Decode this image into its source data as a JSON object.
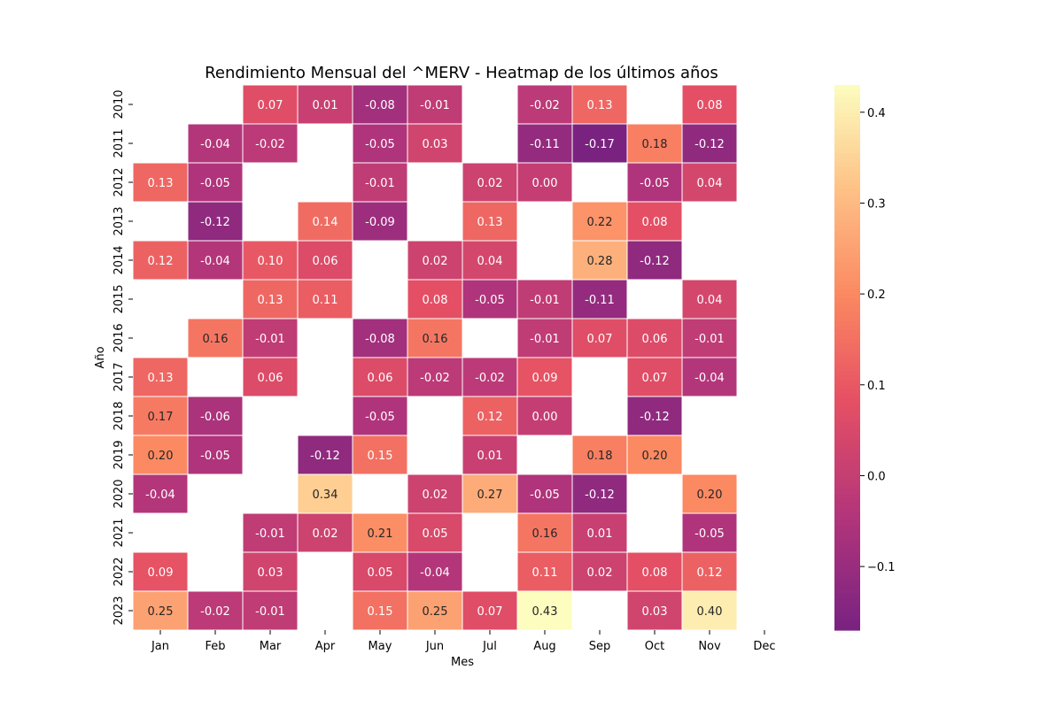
{
  "chart_data": {
    "type": "heatmap",
    "title": "Rendimiento Mensual del ^MERV - Heatmap de los últimos años",
    "xlabel": "Mes",
    "ylabel": "Año",
    "x_categories": [
      "Jan",
      "Feb",
      "Mar",
      "Apr",
      "May",
      "Jun",
      "Jul",
      "Aug",
      "Sep",
      "Oct",
      "Nov",
      "Dec"
    ],
    "y_categories": [
      "2010",
      "2011",
      "2012",
      "2013",
      "2014",
      "2015",
      "2016",
      "2017",
      "2018",
      "2019",
      "2020",
      "2021",
      "2022",
      "2023"
    ],
    "values": [
      [
        null,
        null,
        0.07,
        0.01,
        -0.08,
        -0.01,
        null,
        -0.02,
        0.13,
        null,
        0.08,
        null
      ],
      [
        null,
        -0.04,
        -0.02,
        null,
        -0.05,
        0.03,
        null,
        -0.11,
        -0.17,
        0.18,
        -0.12,
        null
      ],
      [
        0.13,
        -0.05,
        null,
        null,
        -0.01,
        null,
        0.02,
        0.0,
        null,
        -0.05,
        0.04,
        null
      ],
      [
        null,
        -0.12,
        null,
        0.14,
        -0.09,
        null,
        0.13,
        null,
        0.22,
        0.08,
        null,
        null
      ],
      [
        0.12,
        -0.04,
        0.1,
        0.06,
        null,
        0.02,
        0.04,
        null,
        0.28,
        -0.12,
        null,
        null
      ],
      [
        null,
        null,
        0.13,
        0.11,
        null,
        0.08,
        -0.05,
        -0.01,
        -0.11,
        null,
        0.04,
        null
      ],
      [
        null,
        0.16,
        -0.01,
        null,
        -0.08,
        0.16,
        null,
        -0.01,
        0.07,
        0.06,
        -0.01,
        null
      ],
      [
        0.13,
        null,
        0.06,
        null,
        0.06,
        -0.02,
        -0.02,
        0.09,
        null,
        0.07,
        -0.04,
        null
      ],
      [
        0.17,
        -0.06,
        null,
        null,
        -0.05,
        null,
        0.12,
        0.0,
        null,
        -0.12,
        null,
        null
      ],
      [
        0.2,
        -0.05,
        null,
        -0.12,
        0.15,
        null,
        0.01,
        null,
        0.18,
        0.2,
        null,
        null
      ],
      [
        -0.04,
        null,
        null,
        0.34,
        null,
        0.02,
        0.27,
        -0.05,
        -0.12,
        null,
        0.2,
        null
      ],
      [
        null,
        null,
        -0.01,
        0.02,
        0.21,
        0.05,
        null,
        0.16,
        0.01,
        null,
        -0.05,
        null
      ],
      [
        0.09,
        null,
        0.03,
        null,
        0.05,
        -0.04,
        null,
        0.11,
        0.02,
        0.08,
        0.12,
        null
      ],
      [
        0.25,
        -0.02,
        -0.01,
        null,
        0.15,
        0.25,
        0.07,
        0.43,
        null,
        0.03,
        0.4,
        null
      ]
    ],
    "value_format": "2 decimals",
    "colormap": "magma",
    "vmin": -0.17,
    "vmax": 0.43,
    "colorbar_ticks": [
      "0.4",
      "0.3",
      "0.2",
      "0.1",
      "0.0",
      "−0.1"
    ],
    "colorbar_tick_values": [
      0.4,
      0.3,
      0.2,
      0.1,
      0.0,
      -0.1
    ],
    "grid": false,
    "cell_border_color": "#ffffff"
  }
}
